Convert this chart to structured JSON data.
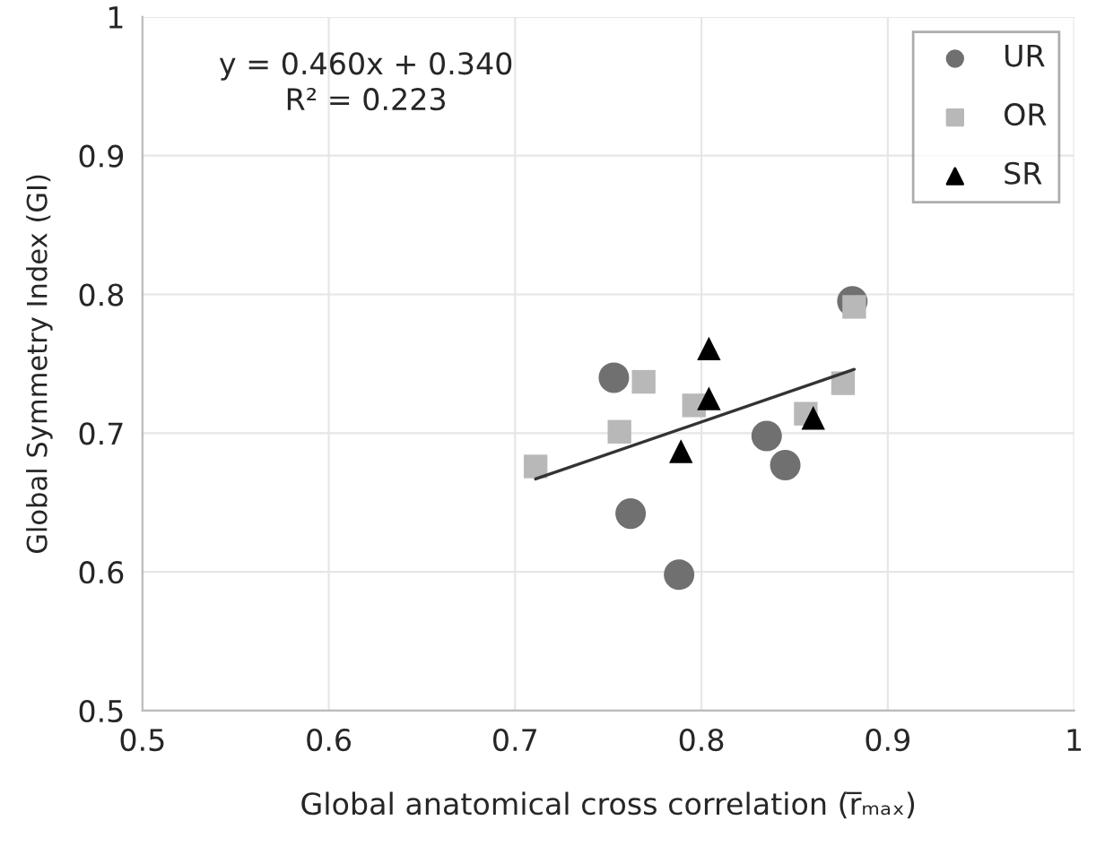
{
  "chart_data": {
    "type": "scatter",
    "xlabel": "Global anatomical cross correlation (r̅ₘₐₓ)",
    "ylabel": "Global Symmetry Index (GI)",
    "xlim": [
      0.5,
      1
    ],
    "xticks": [
      0.5,
      0.6,
      0.7,
      0.8,
      0.9,
      1
    ],
    "ylim": [
      0.5,
      1
    ],
    "yticks": [
      0.5,
      0.6,
      0.7,
      0.8,
      0.9,
      1
    ],
    "grid": true,
    "legend": "top right",
    "annotations": [
      "y = 0.460x + 0.340\nR² = 0.223"
    ],
    "series": [
      {
        "name": "UR",
        "color": "#707070",
        "marker": "circle",
        "x": [
          0.753,
          0.762,
          0.788,
          0.835,
          0.845,
          0.881
        ],
        "values": [
          0.74,
          0.642,
          0.598,
          0.698,
          0.677,
          0.795
        ]
      },
      {
        "name": "OR",
        "color": "#b8b8b8",
        "marker": "square",
        "x": [
          0.711,
          0.756,
          0.769,
          0.796,
          0.856,
          0.876,
          0.882
        ],
        "values": [
          0.676,
          0.701,
          0.737,
          0.72,
          0.714,
          0.736,
          0.791
        ]
      },
      {
        "name": "SR",
        "color": "#000000",
        "marker": "triangle",
        "x": [
          0.804,
          0.804,
          0.789,
          0.86
        ],
        "values": [
          0.761,
          0.725,
          0.687,
          0.711
        ]
      },
      {
        "type": "line",
        "color": "#333333",
        "marker": "none",
        "x": [
          0.711,
          0.882
        ],
        "values": [
          0.667,
          0.746
        ]
      }
    ]
  }
}
